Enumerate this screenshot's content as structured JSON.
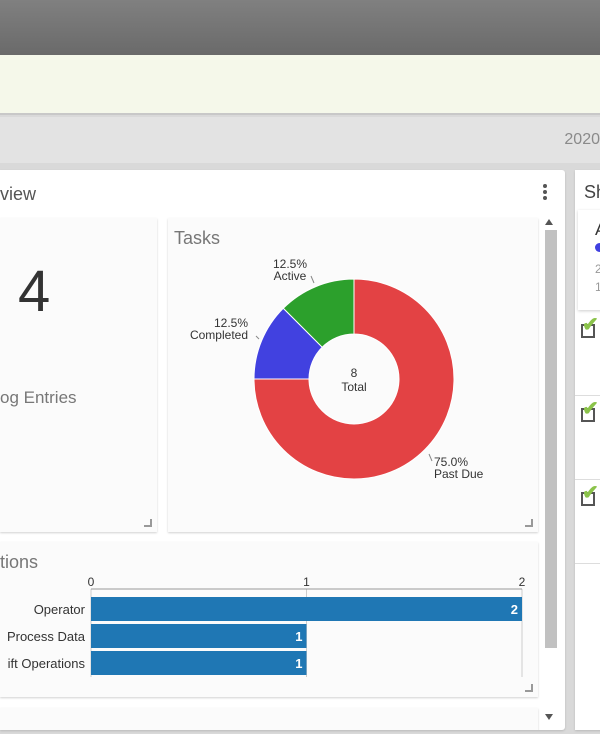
{
  "header": {
    "date": "2020"
  },
  "panel": {
    "title": "view"
  },
  "log_card": {
    "count": "4",
    "label": "og Entries"
  },
  "tasks_card": {
    "title": "Tasks"
  },
  "ops_card": {
    "title": "tions"
  },
  "right_panel": {
    "title": "Sh",
    "card_initial": "A",
    "line1": "2",
    "line2": "1",
    "status_dot_color": "#4040e0",
    "items": [
      {
        "icon": "check-icon"
      },
      {
        "icon": "check-icon"
      },
      {
        "icon": "check-icon"
      }
    ]
  },
  "chart_data": [
    {
      "type": "pie",
      "title": "Tasks",
      "center_label": {
        "value": "8",
        "label": "Total"
      },
      "slices": [
        {
          "label": "Past Due",
          "value": 75.0,
          "percent_label": "75.0%",
          "color": "#e34244"
        },
        {
          "label": "Completed",
          "value": 12.5,
          "percent_label": "12.5%",
          "color": "#4141e0"
        },
        {
          "label": "Active",
          "value": 12.5,
          "percent_label": "12.5%",
          "color": "#2ca02c"
        }
      ]
    },
    {
      "type": "bar",
      "orientation": "horizontal",
      "title": "tions",
      "categories": [
        "Operator",
        "Process Data",
        "ift Operations"
      ],
      "values": [
        2,
        1,
        1
      ],
      "xlim": [
        0,
        2
      ],
      "xticks": [
        "0",
        "1",
        "2"
      ],
      "color": "#1f77b4"
    }
  ]
}
